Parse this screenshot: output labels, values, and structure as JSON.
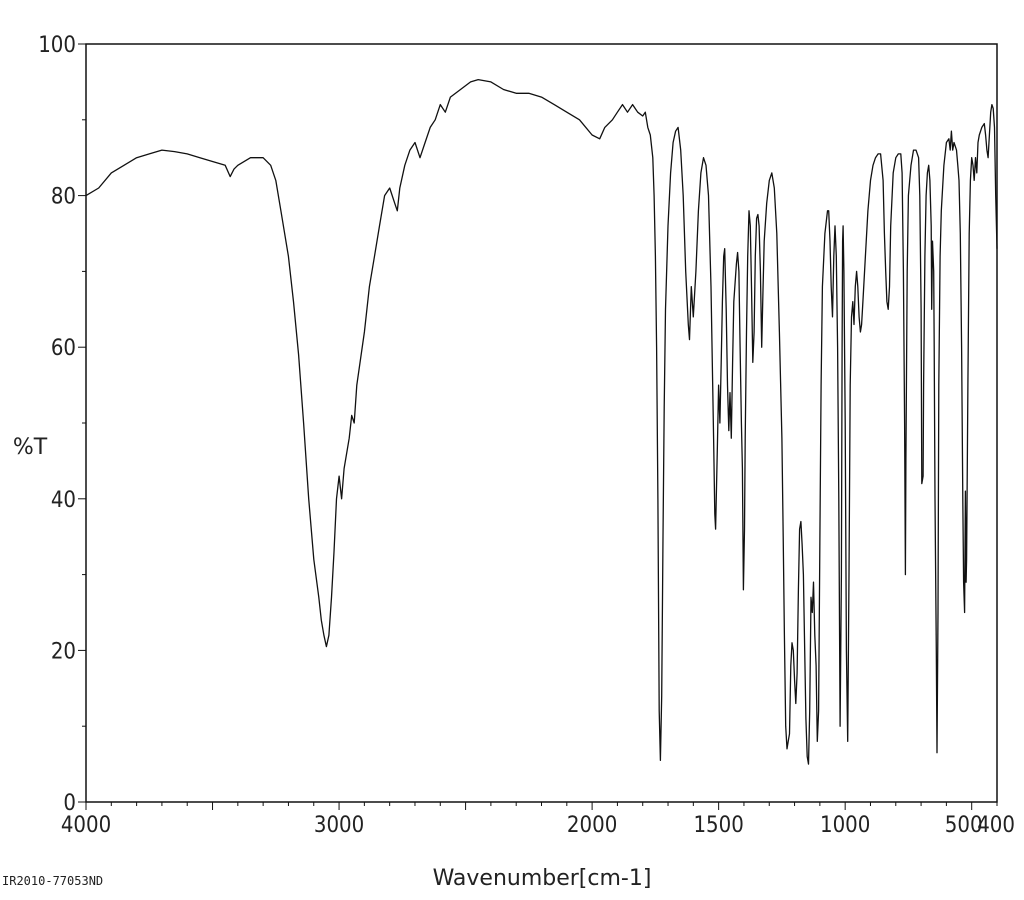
{
  "chart_data": {
    "type": "line",
    "title": "",
    "xlabel": "Wavenumber[cm-1]",
    "ylabel": "%T",
    "xlim": [
      4000,
      400
    ],
    "ylim": [
      0,
      100
    ],
    "x_reversed": true,
    "x_ticks": [
      4000,
      3000,
      2000,
      1500,
      1000,
      500,
      400
    ],
    "x_tick_labels": [
      "4000",
      "3000",
      "2000",
      "1500",
      "1000",
      "500",
      "400"
    ],
    "y_ticks": [
      0,
      20,
      40,
      60,
      80,
      100
    ],
    "y_tick_labels": [
      "0",
      "20",
      "40",
      "60",
      "80",
      "100"
    ],
    "grid": false,
    "line_color": "#111111",
    "series": [
      {
        "name": "",
        "points": [
          [
            4000,
            80
          ],
          [
            3950,
            81
          ],
          [
            3900,
            83
          ],
          [
            3850,
            84
          ],
          [
            3800,
            85
          ],
          [
            3750,
            85.5
          ],
          [
            3700,
            86
          ],
          [
            3650,
            85.8
          ],
          [
            3600,
            85.5
          ],
          [
            3550,
            85
          ],
          [
            3500,
            84.5
          ],
          [
            3450,
            84
          ],
          [
            3430,
            82.5
          ],
          [
            3415,
            83.5
          ],
          [
            3400,
            84
          ],
          [
            3350,
            85
          ],
          [
            3300,
            85
          ],
          [
            3270,
            84
          ],
          [
            3250,
            82
          ],
          [
            3230,
            78
          ],
          [
            3200,
            72
          ],
          [
            3180,
            66
          ],
          [
            3160,
            59
          ],
          [
            3140,
            50
          ],
          [
            3120,
            40
          ],
          [
            3100,
            32
          ],
          [
            3080,
            27
          ],
          [
            3070,
            24
          ],
          [
            3060,
            22
          ],
          [
            3050,
            20.5
          ],
          [
            3040,
            22
          ],
          [
            3030,
            27
          ],
          [
            3020,
            33
          ],
          [
            3010,
            40
          ],
          [
            3000,
            43
          ],
          [
            2990,
            40
          ],
          [
            2980,
            44
          ],
          [
            2960,
            48
          ],
          [
            2950,
            51
          ],
          [
            2940,
            50
          ],
          [
            2930,
            55
          ],
          [
            2900,
            62
          ],
          [
            2880,
            68
          ],
          [
            2860,
            72
          ],
          [
            2840,
            76
          ],
          [
            2820,
            80
          ],
          [
            2800,
            81
          ],
          [
            2780,
            79
          ],
          [
            2770,
            78
          ],
          [
            2760,
            81
          ],
          [
            2740,
            84
          ],
          [
            2720,
            86
          ],
          [
            2700,
            87
          ],
          [
            2680,
            85
          ],
          [
            2660,
            87
          ],
          [
            2640,
            89
          ],
          [
            2620,
            90
          ],
          [
            2600,
            92
          ],
          [
            2580,
            91
          ],
          [
            2560,
            93
          ],
          [
            2520,
            94
          ],
          [
            2480,
            95
          ],
          [
            2450,
            95.3
          ],
          [
            2400,
            95
          ],
          [
            2350,
            94
          ],
          [
            2300,
            93.5
          ],
          [
            2250,
            93.5
          ],
          [
            2200,
            93
          ],
          [
            2150,
            92
          ],
          [
            2100,
            91
          ],
          [
            2050,
            90
          ],
          [
            2000,
            88
          ],
          [
            1970,
            87.5
          ],
          [
            1950,
            89
          ],
          [
            1920,
            90
          ],
          [
            1900,
            91
          ],
          [
            1880,
            92
          ],
          [
            1860,
            91
          ],
          [
            1840,
            92
          ],
          [
            1820,
            91
          ],
          [
            1800,
            90.5
          ],
          [
            1790,
            91
          ],
          [
            1780,
            89
          ],
          [
            1770,
            88
          ],
          [
            1760,
            85
          ],
          [
            1755,
            80
          ],
          [
            1750,
            72
          ],
          [
            1745,
            60
          ],
          [
            1740,
            40
          ],
          [
            1735,
            12
          ],
          [
            1730,
            5.5
          ],
          [
            1725,
            14
          ],
          [
            1720,
            35
          ],
          [
            1715,
            52
          ],
          [
            1710,
            65
          ],
          [
            1700,
            76
          ],
          [
            1690,
            83
          ],
          [
            1680,
            87
          ],
          [
            1670,
            88.5
          ],
          [
            1660,
            89
          ],
          [
            1650,
            86
          ],
          [
            1640,
            80
          ],
          [
            1630,
            70
          ],
          [
            1620,
            63
          ],
          [
            1615,
            61
          ],
          [
            1608,
            68
          ],
          [
            1600,
            64
          ],
          [
            1590,
            70
          ],
          [
            1580,
            78
          ],
          [
            1570,
            83
          ],
          [
            1560,
            85
          ],
          [
            1550,
            84
          ],
          [
            1540,
            80
          ],
          [
            1530,
            68
          ],
          [
            1520,
            48
          ],
          [
            1515,
            38
          ],
          [
            1512,
            36
          ],
          [
            1505,
            47
          ],
          [
            1500,
            55
          ],
          [
            1495,
            50
          ],
          [
            1490,
            58
          ],
          [
            1485,
            66
          ],
          [
            1480,
            72
          ],
          [
            1476,
            73
          ],
          [
            1470,
            65
          ],
          [
            1465,
            55
          ],
          [
            1460,
            49
          ],
          [
            1455,
            54
          ],
          [
            1450,
            48
          ],
          [
            1445,
            58
          ],
          [
            1440,
            66
          ],
          [
            1430,
            71
          ],
          [
            1425,
            72.5
          ],
          [
            1420,
            70
          ],
          [
            1415,
            60
          ],
          [
            1410,
            50
          ],
          [
            1406,
            44
          ],
          [
            1402,
            28
          ],
          [
            1398,
            36
          ],
          [
            1395,
            48
          ],
          [
            1390,
            62
          ],
          [
            1385,
            72
          ],
          [
            1380,
            78
          ],
          [
            1375,
            76
          ],
          [
            1370,
            68
          ],
          [
            1365,
            58
          ],
          [
            1360,
            62
          ],
          [
            1355,
            72
          ],
          [
            1350,
            77
          ],
          [
            1345,
            77.5
          ],
          [
            1340,
            76
          ],
          [
            1335,
            70
          ],
          [
            1330,
            60
          ],
          [
            1325,
            67
          ],
          [
            1320,
            74
          ],
          [
            1310,
            79
          ],
          [
            1300,
            82
          ],
          [
            1290,
            83
          ],
          [
            1280,
            81
          ],
          [
            1270,
            75
          ],
          [
            1260,
            62
          ],
          [
            1250,
            48
          ],
          [
            1245,
            35
          ],
          [
            1240,
            22
          ],
          [
            1235,
            10
          ],
          [
            1230,
            7
          ],
          [
            1225,
            8
          ],
          [
            1220,
            9
          ],
          [
            1215,
            18
          ],
          [
            1210,
            21
          ],
          [
            1205,
            20
          ],
          [
            1200,
            16
          ],
          [
            1195,
            13
          ],
          [
            1190,
            17
          ],
          [
            1185,
            28
          ],
          [
            1180,
            36
          ],
          [
            1175,
            37
          ],
          [
            1170,
            34
          ],
          [
            1165,
            30
          ],
          [
            1160,
            20
          ],
          [
            1155,
            11
          ],
          [
            1150,
            6
          ],
          [
            1145,
            5
          ],
          [
            1140,
            12
          ],
          [
            1135,
            27
          ],
          [
            1130,
            25
          ],
          [
            1125,
            29
          ],
          [
            1120,
            22
          ],
          [
            1115,
            18
          ],
          [
            1110,
            8
          ],
          [
            1105,
            12
          ],
          [
            1100,
            35
          ],
          [
            1095,
            55
          ],
          [
            1090,
            68
          ],
          [
            1080,
            75
          ],
          [
            1070,
            78
          ],
          [
            1065,
            78
          ],
          [
            1060,
            74
          ],
          [
            1055,
            68
          ],
          [
            1050,
            64
          ],
          [
            1045,
            72
          ],
          [
            1040,
            76
          ],
          [
            1035,
            72
          ],
          [
            1030,
            60
          ],
          [
            1025,
            40
          ],
          [
            1020,
            10
          ],
          [
            1015,
            30
          ],
          [
            1012,
            60
          ],
          [
            1010,
            74
          ],
          [
            1008,
            76
          ],
          [
            1005,
            70
          ],
          [
            1000,
            50
          ],
          [
            995,
            20
          ],
          [
            990,
            8
          ],
          [
            985,
            30
          ],
          [
            980,
            55
          ],
          [
            975,
            64
          ],
          [
            970,
            66
          ],
          [
            965,
            63
          ],
          [
            960,
            68
          ],
          [
            955,
            70
          ],
          [
            950,
            68
          ],
          [
            945,
            64
          ],
          [
            940,
            62
          ],
          [
            935,
            63
          ],
          [
            930,
            66
          ],
          [
            920,
            72
          ],
          [
            910,
            78
          ],
          [
            900,
            82
          ],
          [
            890,
            84
          ],
          [
            880,
            85
          ],
          [
            870,
            85.5
          ],
          [
            860,
            85.5
          ],
          [
            850,
            82
          ],
          [
            845,
            75
          ],
          [
            840,
            70
          ],
          [
            835,
            66
          ],
          [
            830,
            65
          ],
          [
            825,
            68
          ],
          [
            820,
            76
          ],
          [
            810,
            83
          ],
          [
            800,
            85
          ],
          [
            790,
            85.5
          ],
          [
            780,
            85.5
          ],
          [
            775,
            83
          ],
          [
            770,
            70
          ],
          [
            765,
            50
          ],
          [
            762,
            30
          ],
          [
            760,
            45
          ],
          [
            755,
            70
          ],
          [
            750,
            80
          ],
          [
            740,
            84
          ],
          [
            730,
            86
          ],
          [
            720,
            86
          ],
          [
            710,
            85
          ],
          [
            705,
            80
          ],
          [
            700,
            65
          ],
          [
            697,
            42
          ],
          [
            692,
            43
          ],
          [
            690,
            55
          ],
          [
            685,
            72
          ],
          [
            680,
            80
          ],
          [
            675,
            83
          ],
          [
            670,
            84
          ],
          [
            665,
            82
          ],
          [
            660,
            76
          ],
          [
            658,
            65
          ],
          [
            655,
            74
          ],
          [
            650,
            70
          ],
          [
            648,
            60
          ],
          [
            645,
            40
          ],
          [
            640,
            20
          ],
          [
            637,
            6.5
          ],
          [
            633,
            25
          ],
          [
            630,
            55
          ],
          [
            625,
            72
          ],
          [
            620,
            78
          ],
          [
            615,
            81
          ],
          [
            610,
            84
          ],
          [
            600,
            87
          ],
          [
            590,
            87.5
          ],
          [
            585,
            86
          ],
          [
            580,
            88.5
          ],
          [
            575,
            86
          ],
          [
            570,
            87
          ],
          [
            560,
            86
          ],
          [
            555,
            84
          ],
          [
            550,
            82
          ],
          [
            545,
            75
          ],
          [
            540,
            60
          ],
          [
            535,
            40
          ],
          [
            532,
            29
          ],
          [
            528,
            25
          ],
          [
            525,
            41
          ],
          [
            522,
            29
          ],
          [
            520,
            32
          ],
          [
            515,
            55
          ],
          [
            510,
            75
          ],
          [
            505,
            82
          ],
          [
            500,
            85
          ],
          [
            495,
            84
          ],
          [
            490,
            82
          ],
          [
            485,
            85
          ],
          [
            480,
            83
          ],
          [
            475,
            87
          ],
          [
            470,
            88
          ],
          [
            460,
            89
          ],
          [
            450,
            89.5
          ],
          [
            445,
            88
          ],
          [
            440,
            86
          ],
          [
            435,
            85
          ],
          [
            430,
            88
          ],
          [
            425,
            91
          ],
          [
            420,
            92
          ],
          [
            415,
            91.5
          ],
          [
            410,
            89
          ],
          [
            405,
            80
          ],
          [
            400,
            73
          ]
        ]
      }
    ]
  },
  "footer": {
    "sample_id": "IR2010-77053ND"
  }
}
